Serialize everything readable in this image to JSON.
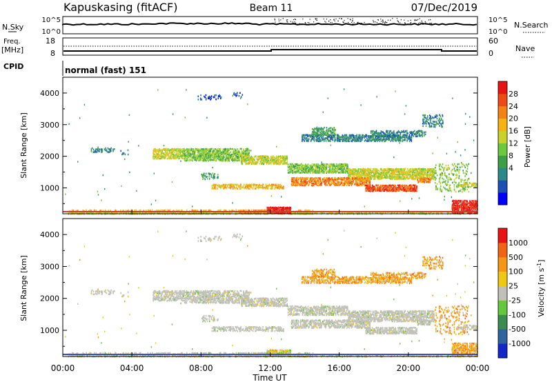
{
  "header": {
    "station": "Kapuskasing (fitACF)",
    "beam": "Beam 11",
    "date": "07/Dec/2019"
  },
  "top_panels": {
    "nsky_label": "N.Sky",
    "nsky_ticks": [
      "10^5",
      "10^0"
    ],
    "nsearch_label": "N.Search",
    "freq_label": "Freq.",
    "freq_unit": "[MHz]",
    "freq_ticks": [
      "18",
      "8"
    ],
    "nave_label": "Nave",
    "nave_ticks": [
      "60",
      "0"
    ],
    "cpid_label": "CPID",
    "cpid_value": "normal (fast) 151"
  },
  "chart_data": [
    {
      "type": "heatmap",
      "name": "power",
      "ylabel": "Slant Range [km]",
      "yticks": [
        "4000",
        "3000",
        "2000",
        "1000"
      ],
      "ylim": [
        180,
        4500
      ],
      "xlim_hours": [
        0,
        24
      ],
      "colorbar_label": "Power [dB]",
      "colorbar_ticks": [
        "28",
        "24",
        "20",
        "16",
        "12",
        "8",
        "4"
      ],
      "colorbar_colors": [
        "#0000ff",
        "#1e50b4",
        "#2a8a8a",
        "#3c9e46",
        "#6ec83c",
        "#c8d22a",
        "#f5b414",
        "#f58214",
        "#ee4b14",
        "#e81414"
      ]
    },
    {
      "type": "heatmap",
      "name": "velocity",
      "ylabel": "Slant Range [km]",
      "yticks": [
        "4000",
        "3000",
        "2000",
        "1000"
      ],
      "ylim": [
        180,
        4500
      ],
      "xlim_hours": [
        0,
        24
      ],
      "colorbar_label": "Velocity [m s",
      "colorbar_sup": "-1",
      "colorbar_close": "]",
      "colorbar_ticks": [
        "1000",
        "500",
        "100",
        "25",
        "-25",
        "-100",
        "-500",
        "-1000"
      ],
      "colorbar_colors": [
        "#1428c8",
        "#2d64a0",
        "#3c8c50",
        "#64c83c",
        "#c0c0b8",
        "#f0c814",
        "#f59614",
        "#f06414",
        "#e81414"
      ]
    }
  ],
  "xaxis": {
    "ticks": [
      "00:00",
      "04:00",
      "08:00",
      "12:00",
      "16:00",
      "20:00",
      "00:00"
    ],
    "label": "Time UT"
  }
}
